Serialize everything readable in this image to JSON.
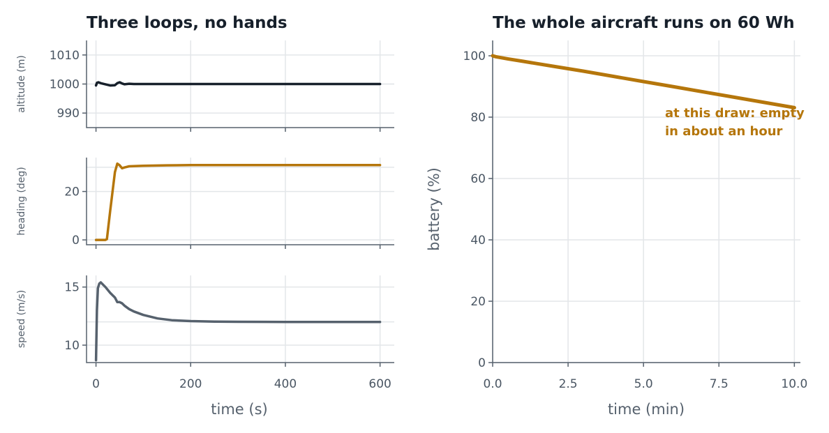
{
  "chart_data": [
    {
      "type": "line",
      "title": "Three loops, no hands",
      "xlabel": "time (s)",
      "x_ticks": [
        0,
        200,
        400,
        600
      ],
      "xlim": [
        -20,
        630
      ],
      "panels": [
        {
          "ylabel": "altitude (m)",
          "ylim": [
            985,
            1015
          ],
          "y_ticks": [
            990,
            1000,
            1010
          ],
          "reference": 1000,
          "color": "#17202b",
          "series": {
            "x": [
              0,
              2,
              5,
              10,
              20,
              30,
              40,
              45,
              50,
              55,
              60,
              70,
              80,
              100,
              200,
              300,
              400,
              500,
              600
            ],
            "y": [
              999.5,
              1000.4,
              1000.6,
              1000.3,
              999.9,
              999.5,
              999.6,
              1000.3,
              1000.6,
              1000.2,
              999.9,
              1000.1,
              1000.0,
              1000,
              1000,
              1000,
              1000,
              1000,
              1000
            ]
          }
        },
        {
          "ylabel": "heading (deg)",
          "ylim": [
            -2,
            34
          ],
          "y_ticks": [
            0,
            20
          ],
          "reference": 30,
          "color": "#b5760b",
          "series": {
            "x": [
              0,
              10,
              20,
              23,
              30,
              40,
              45,
              50,
              55,
              60,
              70,
              80,
              100,
              150,
              200,
              300,
              400,
              500,
              600
            ],
            "y": [
              0,
              0,
              0,
              0.3,
              12,
              28,
              31.5,
              30.8,
              29.6,
              29.9,
              30.4,
              30.5,
              30.6,
              30.8,
              30.9,
              30.9,
              30.9,
              30.9,
              30.9
            ]
          }
        },
        {
          "ylabel": "speed (m/s)",
          "ylim": [
            8.5,
            16
          ],
          "y_ticks": [
            10,
            15
          ],
          "reference": 12,
          "color": "#56616d",
          "series": {
            "x": [
              0,
              2,
              4,
              7,
              10,
              20,
              30,
              40,
              45,
              50,
              55,
              60,
              70,
              80,
              100,
              130,
              160,
              200,
              250,
              300,
              400,
              500,
              600
            ],
            "y": [
              8.7,
              13.0,
              14.9,
              15.3,
              15.4,
              15.0,
              14.5,
              14.1,
              13.7,
              13.7,
              13.6,
              13.4,
              13.1,
              12.9,
              12.6,
              12.3,
              12.15,
              12.07,
              12.03,
              12.01,
              12.0,
              12.0,
              12.0
            ]
          }
        }
      ]
    },
    {
      "type": "line",
      "title": "The whole aircraft runs on 60 Wh",
      "xlabel": "time (min)",
      "ylabel": "battery (%)",
      "xlim": [
        0,
        10.2
      ],
      "ylim": [
        0,
        105
      ],
      "x_ticks": [
        0.0,
        2.5,
        5.0,
        7.5,
        10.0
      ],
      "x_tick_labels": [
        "0.0",
        "2.5",
        "5.0",
        "7.5",
        "10.0"
      ],
      "y_ticks": [
        0,
        20,
        40,
        60,
        80,
        100
      ],
      "color": "#b5760b",
      "series": {
        "x": [
          0,
          0.1,
          0.5,
          1,
          2,
          3,
          4,
          5,
          6,
          7,
          8,
          9,
          10
        ],
        "y": [
          100,
          99.7,
          99.0,
          98.2,
          96.6,
          95.0,
          93.3,
          91.6,
          89.9,
          88.2,
          86.5,
          84.8,
          83.1
        ]
      },
      "annotation": {
        "lines": [
          "at this draw: empty",
          "in about an hour"
        ],
        "color": "#b5760b"
      }
    }
  ]
}
